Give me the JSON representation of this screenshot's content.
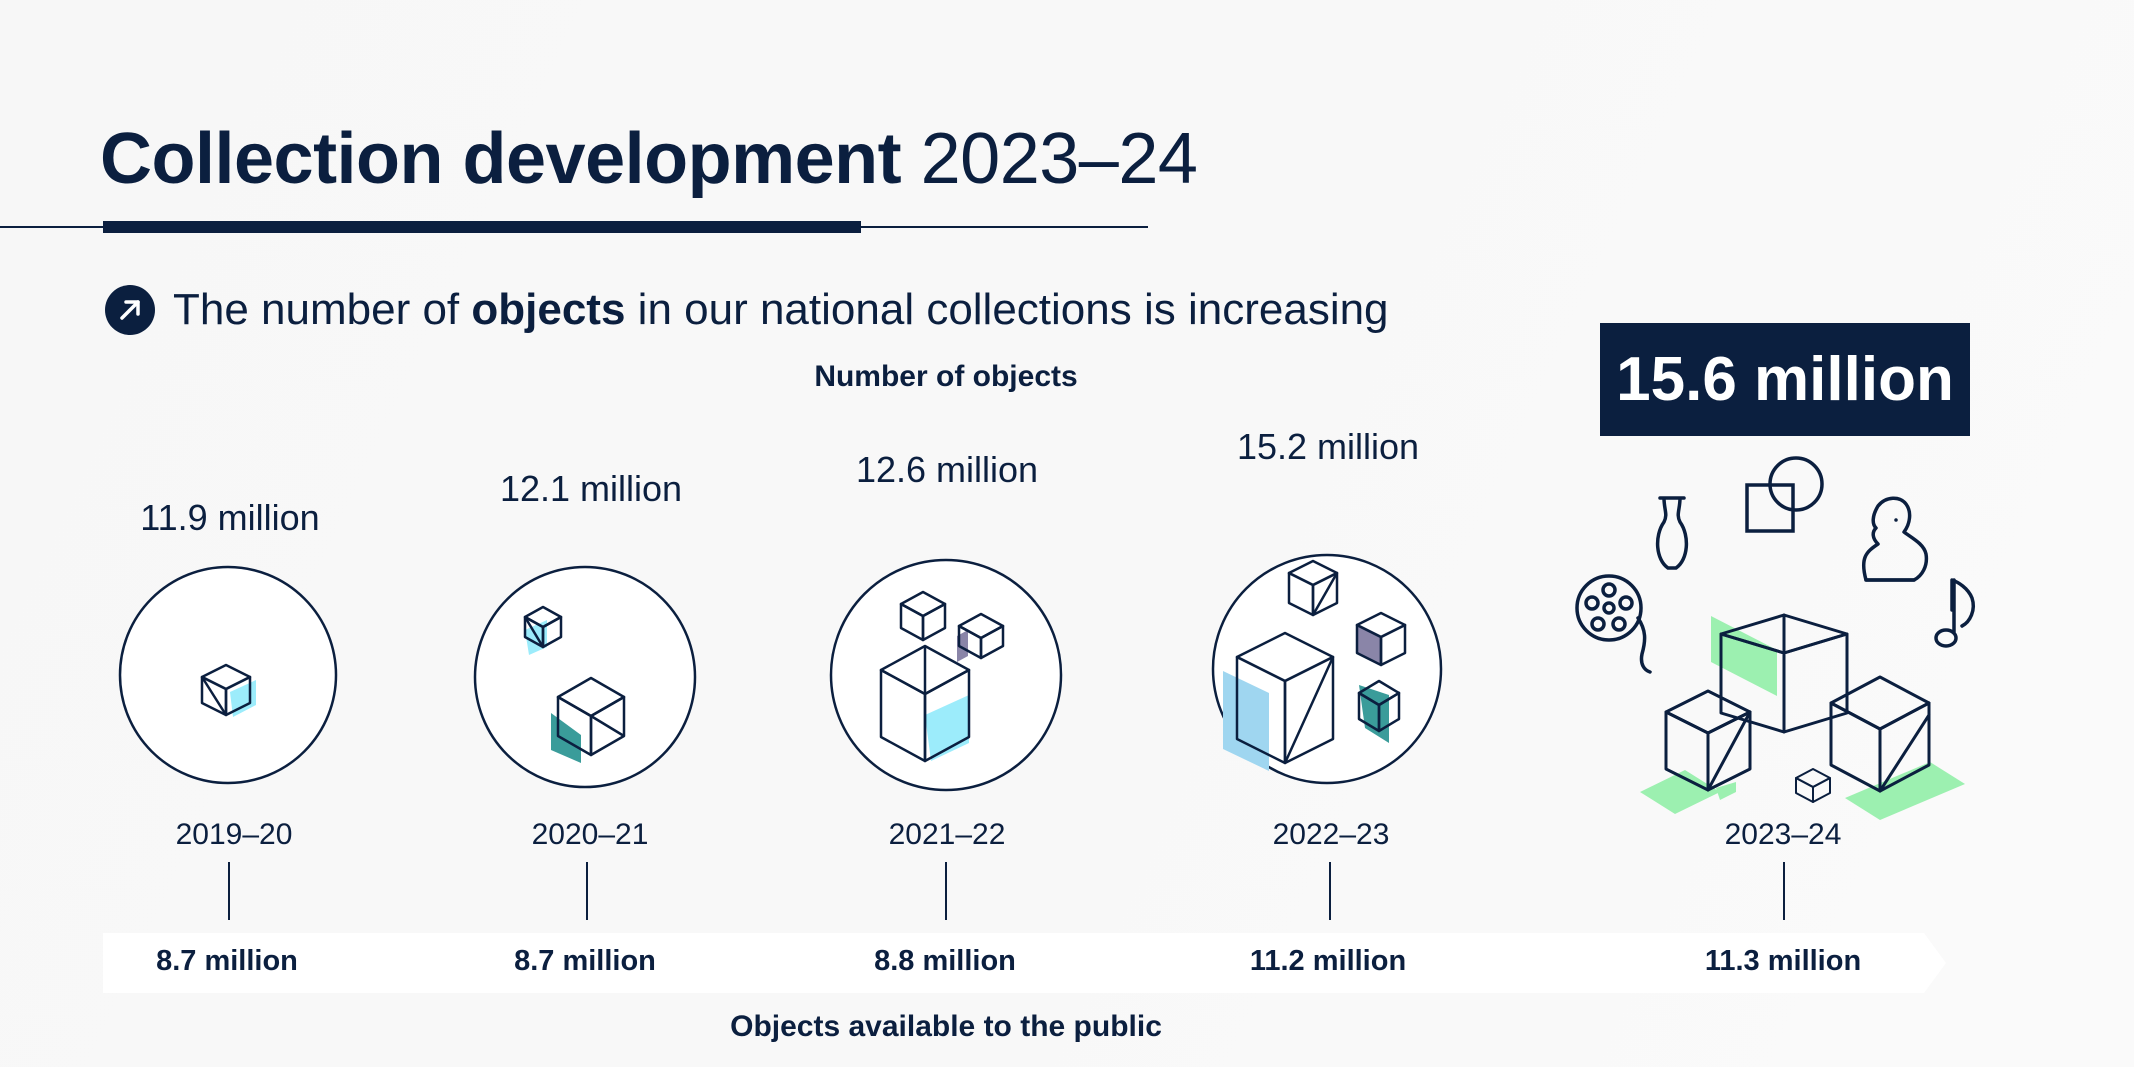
{
  "title": {
    "bold": "Collection development",
    "light": "2023–24"
  },
  "subtitle": {
    "before": "The number of",
    "bold": "objects",
    "after": "in our national collections is increasing"
  },
  "total_label": "Number of objects",
  "public_label": "Objects available to the public",
  "latest_total": "15.6 million",
  "icons": [
    "arrow-up-right-icon",
    "vase-icon",
    "shapes-icon",
    "bust-icon",
    "film-reel-icon",
    "music-note-icon",
    "cube-icon"
  ],
  "colors": {
    "navy": "#0b1f3f",
    "light_blue": "#9fd6f0",
    "cyan": "#9cecfb",
    "teal": "#3a9c9a",
    "purple": "#8a85a8",
    "green": "#9cf0b0"
  },
  "chart_data": {
    "type": "table",
    "title": "Collection development 2023–24",
    "categories": [
      "2019–20",
      "2020–21",
      "2021–22",
      "2022–23",
      "2023–24"
    ],
    "series": [
      {
        "name": "Number of objects",
        "values": [
          11.9,
          12.1,
          12.6,
          15.2,
          15.6
        ],
        "labels": [
          "11.9 million",
          "12.1 million",
          "12.6 million",
          "15.2 million",
          "15.6 million"
        ]
      },
      {
        "name": "Objects available to the public",
        "values": [
          8.7,
          8.7,
          8.8,
          11.2,
          11.3
        ],
        "labels": [
          "8.7 million",
          "8.7 million",
          "8.8 million",
          "11.2 million",
          "11.3 million"
        ]
      }
    ],
    "unit": "million"
  }
}
